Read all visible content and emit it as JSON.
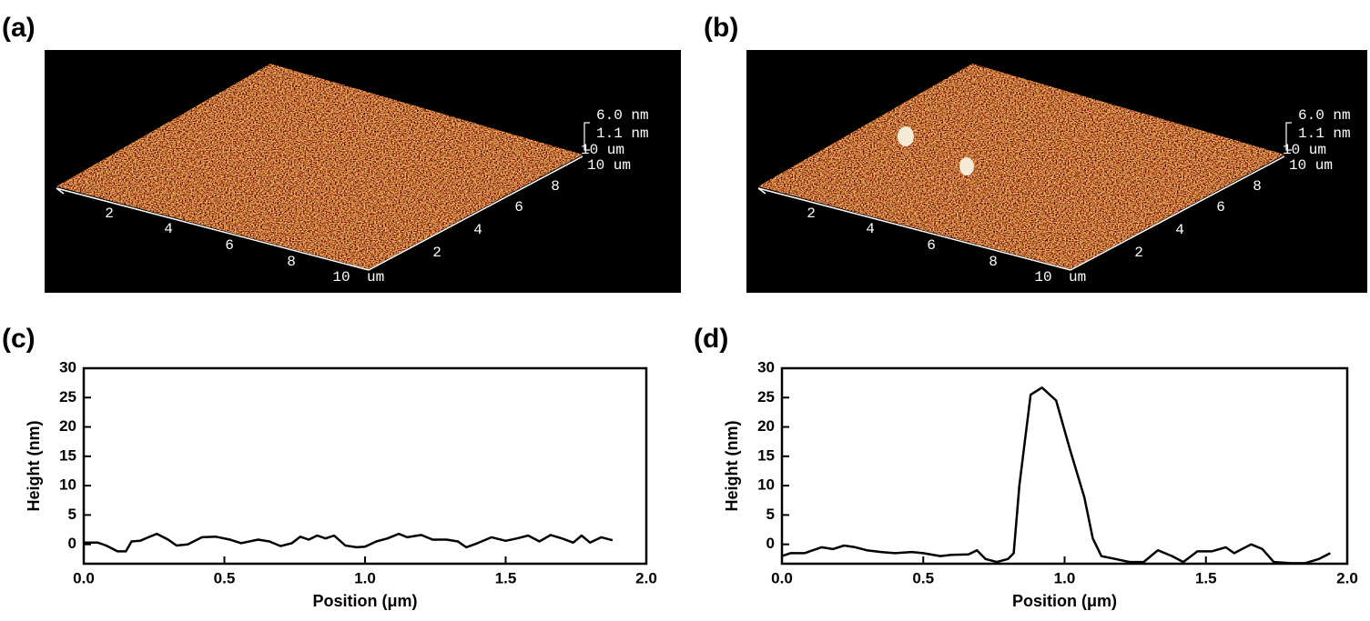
{
  "images": [
    {
      "label": "(a)",
      "scale": [
        "6.0 nm",
        "1.1 nm",
        "10 um"
      ],
      "front_ticks": [
        "2",
        "4",
        "6",
        "8",
        "10"
      ],
      "front_unit": "um",
      "side_ticks": [
        "2",
        "4",
        "6",
        "8"
      ],
      "side_end": "10 um"
    },
    {
      "label": "(b)",
      "scale": [
        "6.0 nm",
        "1.1 nm",
        "10 um"
      ],
      "front_ticks": [
        "2",
        "4",
        "6",
        "8",
        "10"
      ],
      "front_unit": "um",
      "side_ticks": [
        "2",
        "4",
        "6",
        "8"
      ],
      "side_end": "10 um"
    }
  ],
  "chart_data": [
    {
      "type": "line",
      "label": "(c)",
      "x_label": "Position (μm)",
      "y_label": "Height (nm)",
      "color": "#000000",
      "x": [
        0,
        0.05,
        0.08,
        0.12,
        0.15,
        0.17,
        0.2,
        0.23,
        0.26,
        0.3,
        0.33,
        0.37,
        0.42,
        0.47,
        0.52,
        0.56,
        0.62,
        0.66,
        0.7,
        0.74,
        0.77,
        0.8,
        0.83,
        0.86,
        0.89,
        0.93,
        0.97,
        1.0,
        1.04,
        1.08,
        1.12,
        1.15,
        1.2,
        1.24,
        1.29,
        1.33,
        1.36,
        1.4,
        1.45,
        1.5,
        1.54,
        1.58,
        1.62,
        1.66,
        1.7,
        1.74,
        1.77,
        1.8,
        1.84,
        1.88
      ],
      "values": [
        0.3,
        0.3,
        -0.2,
        -1.2,
        -1.2,
        0.5,
        0.6,
        1.2,
        1.8,
        0.8,
        -0.2,
        0,
        1.2,
        1.3,
        0.8,
        0.2,
        0.8,
        0.5,
        -0.3,
        0.2,
        1.3,
        0.8,
        1.5,
        1.0,
        1.5,
        -0.2,
        -0.5,
        -0.4,
        0.5,
        1.0,
        1.8,
        1.2,
        1.6,
        0.8,
        0.8,
        0.5,
        -0.5,
        0.2,
        1.2,
        0.6,
        1.0,
        1.5,
        0.5,
        1.6,
        1.0,
        0.3,
        1.5,
        0.3,
        1.2,
        0.7
      ],
      "xlim": [
        0,
        2.0
      ],
      "ylim": [
        -3.3,
        30
      ],
      "xticks": [
        {
          "value": 0,
          "label": "0.0"
        },
        0.5,
        {
          "value": 1,
          "label": "1.0"
        },
        1.5,
        {
          "value": 2,
          "label": "2.0"
        }
      ],
      "yticks": [
        0,
        5,
        10,
        15,
        20,
        25,
        30
      ]
    },
    {
      "type": "line",
      "label": "(d)",
      "x_label": "Position (μm)",
      "y_label": "Height (nm)",
      "color": "#000000",
      "x": [
        0,
        0.03,
        0.08,
        0.14,
        0.18,
        0.22,
        0.26,
        0.3,
        0.35,
        0.4,
        0.46,
        0.5,
        0.56,
        0.6,
        0.66,
        0.69,
        0.72,
        0.76,
        0.8,
        0.82,
        0.84,
        0.88,
        0.92,
        0.97,
        1.02,
        1.07,
        1.1,
        1.13,
        1.18,
        1.23,
        1.28,
        1.33,
        1.38,
        1.42,
        1.47,
        1.52,
        1.57,
        1.6,
        1.66,
        1.7,
        1.74,
        1.8,
        1.85,
        1.9,
        1.94
      ],
      "values": [
        -2,
        -1.5,
        -1.5,
        -0.5,
        -0.8,
        -0.2,
        -0.5,
        -1.0,
        -1.3,
        -1.5,
        -1.3,
        -1.5,
        -2,
        -1.8,
        -1.7,
        -1.0,
        -2.5,
        -3,
        -2.5,
        -1.5,
        10,
        25.5,
        26.7,
        24.5,
        16,
        8,
        1,
        -2,
        -2.5,
        -3,
        -3,
        -1,
        -2,
        -3,
        -1.2,
        -1.2,
        -0.5,
        -1.5,
        0,
        -0.8,
        -3,
        -3.2,
        -3.2,
        -2.5,
        -1.5
      ],
      "xlim": [
        0,
        2.0
      ],
      "ylim": [
        -3.3,
        30
      ],
      "xticks": [
        {
          "value": 0,
          "label": "0.0"
        },
        0.5,
        {
          "value": 1,
          "label": "1.0"
        },
        1.5,
        {
          "value": 2,
          "label": "2.0"
        }
      ],
      "yticks": [
        0,
        5,
        10,
        15,
        20,
        25,
        30
      ]
    }
  ]
}
